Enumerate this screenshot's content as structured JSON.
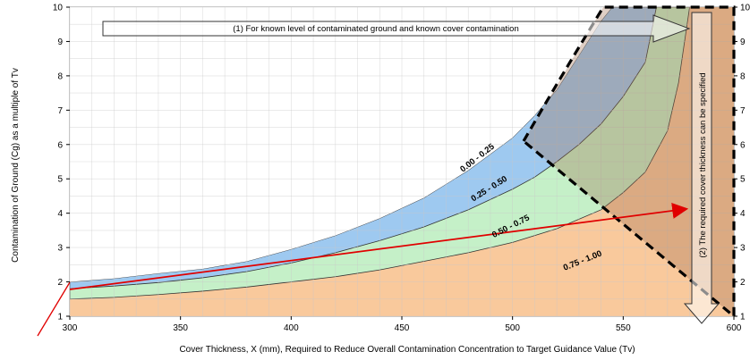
{
  "chart_data": {
    "type": "area",
    "xlabel": "Cover Thickness, X (mm), Required to Reduce Overall Contamination Concentration to Target Guidance Value (Tv)",
    "ylabel": "Contamination of Ground (Cg) as a multiple of Tv",
    "xlim": [
      300,
      600
    ],
    "ylim": [
      1,
      10
    ],
    "x_ticks": [
      300,
      350,
      400,
      450,
      500,
      550,
      600
    ],
    "y_ticks": [
      1,
      2,
      3,
      4,
      5,
      6,
      7,
      8,
      9,
      10
    ],
    "grid": true,
    "series": [
      {
        "name": "0.00 - 0.25",
        "color": "#3a63c9",
        "x": [
          300,
          320,
          340,
          360,
          380,
          400,
          420,
          440,
          460,
          480,
          500,
          510,
          520,
          530,
          540,
          545
        ],
        "y": [
          2.0,
          2.1,
          2.25,
          2.38,
          2.6,
          2.95,
          3.35,
          3.85,
          4.45,
          5.25,
          6.2,
          6.85,
          7.6,
          8.6,
          9.6,
          10
        ]
      },
      {
        "name": "0.25 - 0.50",
        "color": "#9ec9f0",
        "x": [
          300,
          320,
          340,
          360,
          380,
          400,
          420,
          440,
          460,
          480,
          500,
          510,
          520,
          530,
          540,
          550,
          560,
          565
        ],
        "y": [
          1.8,
          1.88,
          1.98,
          2.12,
          2.3,
          2.55,
          2.85,
          3.2,
          3.6,
          4.1,
          4.7,
          5.05,
          5.5,
          6.0,
          6.6,
          7.4,
          8.4,
          10
        ]
      },
      {
        "name": "0.50 - 0.75",
        "color": "#c5f0c8",
        "x": [
          300,
          320,
          340,
          360,
          380,
          400,
          420,
          440,
          460,
          480,
          500,
          520,
          540,
          550,
          560,
          570,
          575,
          580
        ],
        "y": [
          1.5,
          1.55,
          1.63,
          1.73,
          1.85,
          2.0,
          2.15,
          2.35,
          2.6,
          2.85,
          3.15,
          3.55,
          4.1,
          4.6,
          5.2,
          6.4,
          7.8,
          10
        ]
      },
      {
        "name": "0.75 - 1.00",
        "color": "#f9c99c",
        "x": [
          300,
          600
        ],
        "y": [
          1,
          1
        ]
      }
    ],
    "boundary_line": {
      "x": [
        505,
        541,
        548,
        600,
        600,
        600
      ],
      "y": [
        6.1,
        10,
        10,
        10,
        5.5,
        1
      ]
    },
    "annotations": [
      {
        "id": "arrow1",
        "text": "(1) For known level of contaminated ground and known cover contamination"
      },
      {
        "id": "arrow2",
        "text": "(2) The required cover thickness can be specified"
      }
    ],
    "red_line": {
      "x": [
        300,
        578
      ],
      "y": [
        1.78,
        4.12
      ]
    }
  }
}
